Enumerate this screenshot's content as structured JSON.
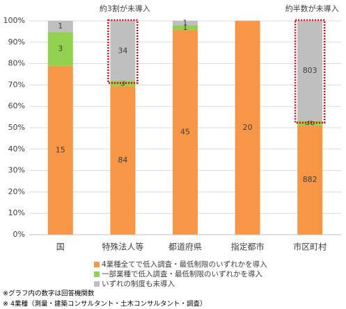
{
  "chart_data": {
    "type": "bar",
    "stacked": "percent",
    "categories": [
      "国",
      "特殊法人等",
      "都道府県",
      "指定都市",
      "市区町村"
    ],
    "series": [
      {
        "name": "4業種全てで低入調査・最低制限のいずれかを導入",
        "color": "#f79646",
        "values": [
          15,
          84,
          45,
          20,
          882
        ]
      },
      {
        "name": "一部業種で低入調査・最低制限のいずれかを導入",
        "color": "#92d050",
        "values": [
          3,
          3,
          1,
          0,
          36
        ]
      },
      {
        "name": "いずれの制度も未導入",
        "color": "#bfbfbf",
        "values": [
          1,
          34,
          1,
          0,
          803
        ]
      }
    ],
    "ylim": [
      0,
      100
    ],
    "yticks": [
      {
        "value": 0,
        "label": "0%"
      },
      {
        "value": 10,
        "label": "10%"
      },
      {
        "value": 20,
        "label": "20%"
      },
      {
        "value": 30,
        "label": "30%"
      },
      {
        "value": 40,
        "label": "40%"
      },
      {
        "value": 50,
        "label": "50%"
      },
      {
        "value": 60,
        "label": "60%"
      },
      {
        "value": 70,
        "label": "70%"
      },
      {
        "value": 80,
        "label": "80%"
      },
      {
        "value": 90,
        "label": "90%"
      },
      {
        "value": 100,
        "label": "100%"
      }
    ],
    "grid": true,
    "legend": "bottom",
    "annotations": [
      "約3割が未導入",
      "約半数が未導入"
    ],
    "notes": [
      "※グラフ内の数字は回答機関数",
      "※ 4業種（測量・建築コンサルタント・土木コンサルタント・調査）"
    ]
  }
}
